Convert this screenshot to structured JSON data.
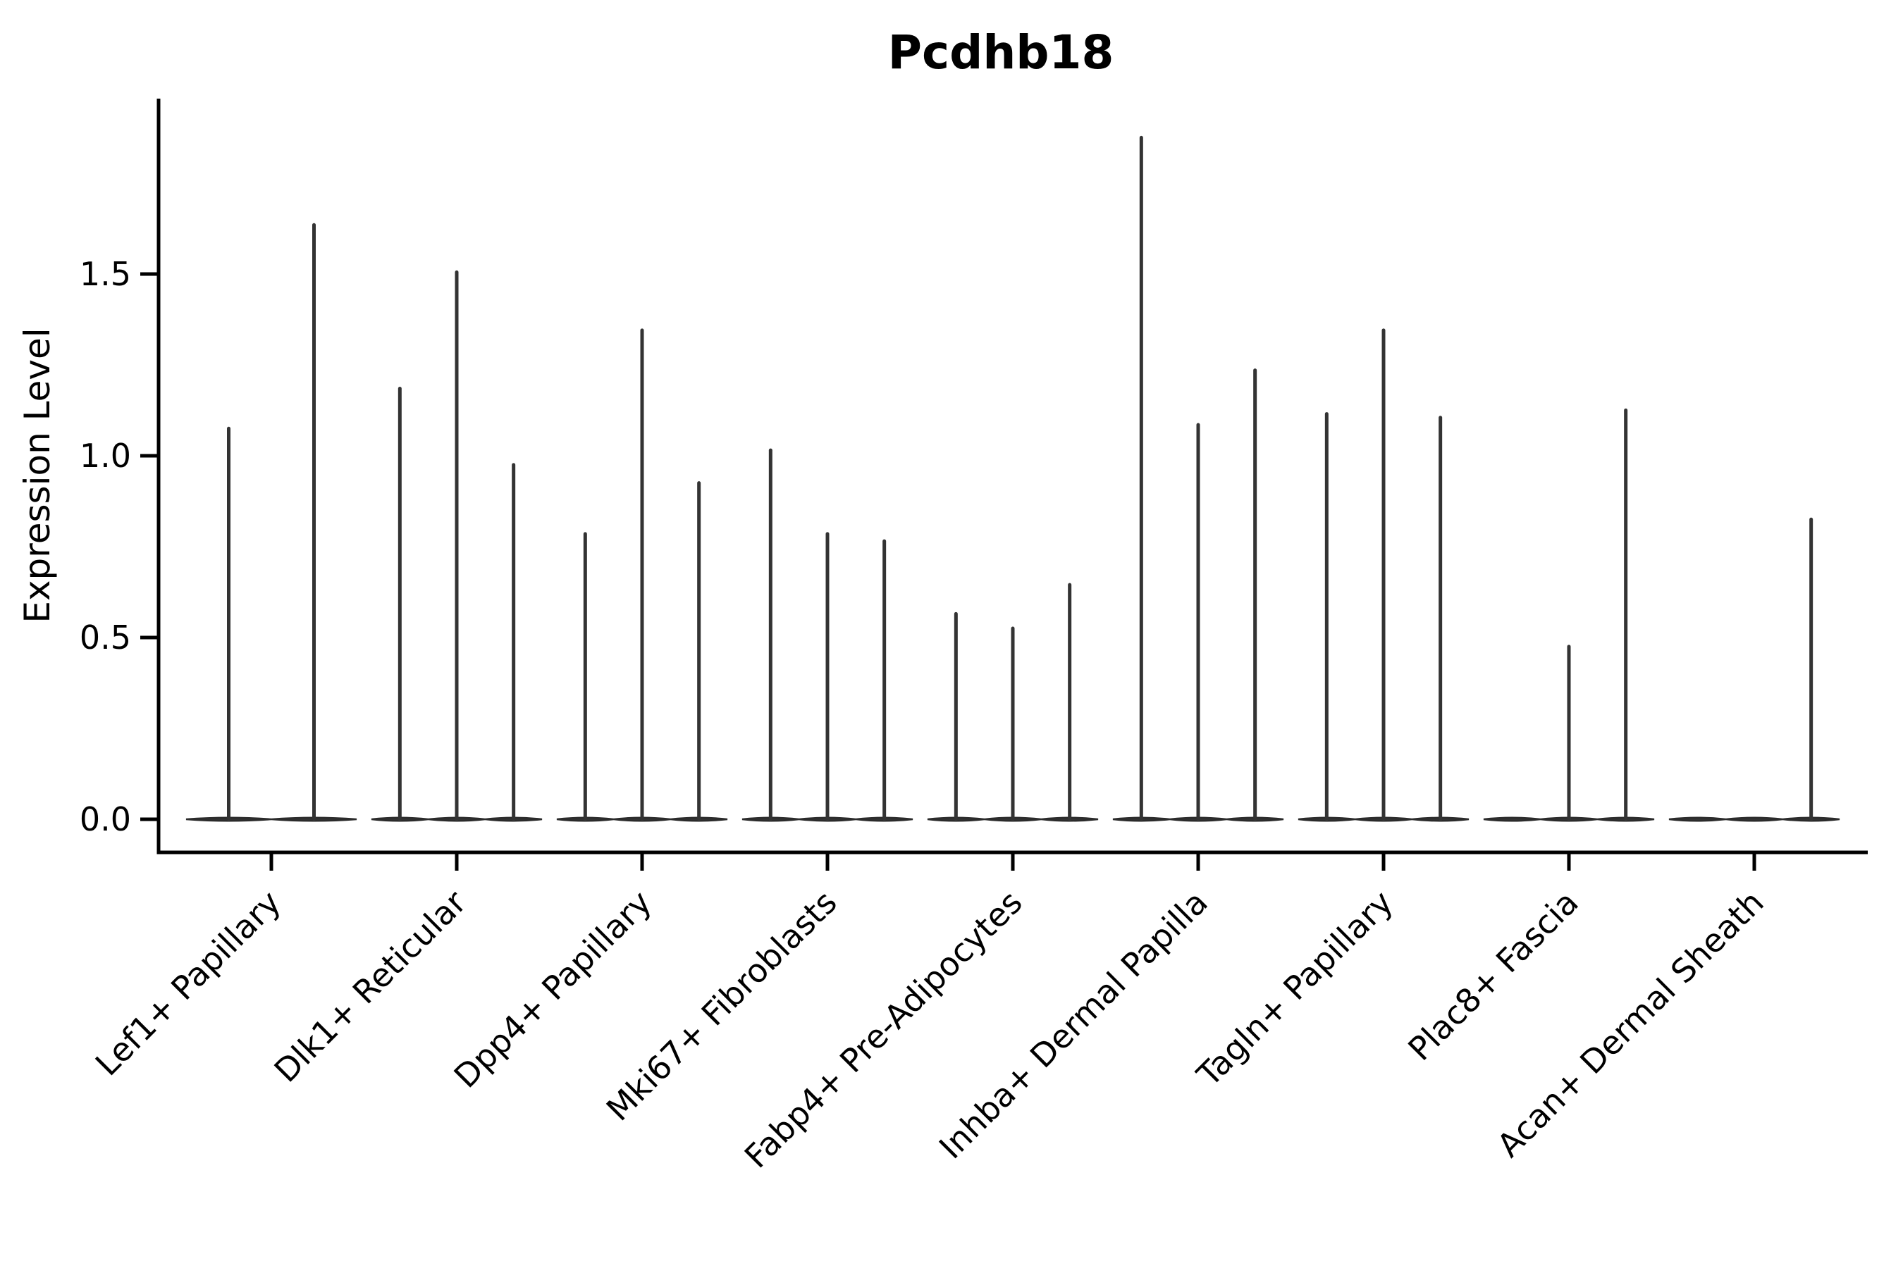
{
  "figure": {
    "background_color": "#ffffff",
    "violin_color": "#333333",
    "violin_edge_color": "#2b2b2b",
    "axis_color": "#000000",
    "text_color": "#000000"
  },
  "chart_data": {
    "type": "violin",
    "title": "Pcdhb18",
    "xlabel": "",
    "ylabel": "Expression Level",
    "orientation": "vertical",
    "grid": false,
    "legend": null,
    "ylim": [
      -0.09,
      1.98
    ],
    "yticks": [
      0.0,
      0.5,
      1.0,
      1.5
    ],
    "ytick_labels": [
      "0.0",
      "0.5",
      "1.0",
      "1.5"
    ],
    "xtick_rotation_deg": 45,
    "categories": [
      "Lef1+ Papillary",
      "Dlk1+ Reticular",
      "Dpp4+ Papillary",
      "Mki67+ Fibroblasts",
      "Fabp4+ Pre-Adipocytes",
      "Inhba+ Dermal Papilla",
      "Tagln+ Papillary",
      "Plac8+ Fascia",
      "Acan+ Dermal Sheath"
    ],
    "violin_shape_note": "Each violin is a spike: density concentrated at expression 0 (flat lens on baseline) with a thin vertical tail reaching the maximum expression value; violins with max 0 are flat on the baseline.",
    "violins": [
      {
        "category": "Lef1+ Papillary",
        "maxima": [
          1.08,
          1.64
        ]
      },
      {
        "category": "Dlk1+ Reticular",
        "maxima": [
          1.19,
          1.51,
          0.98
        ]
      },
      {
        "category": "Dpp4+ Papillary",
        "maxima": [
          0.79,
          1.35,
          0.93
        ]
      },
      {
        "category": "Mki67+ Fibroblasts",
        "maxima": [
          1.02,
          0.79,
          0.77
        ]
      },
      {
        "category": "Fabp4+ Pre-Adipocytes",
        "maxima": [
          0.57,
          0.53,
          0.65
        ]
      },
      {
        "category": "Inhba+ Dermal Papilla",
        "maxima": [
          1.88,
          1.09,
          1.24
        ]
      },
      {
        "category": "Tagln+ Papillary",
        "maxima": [
          1.12,
          1.35,
          1.11
        ]
      },
      {
        "category": "Plac8+ Fascia",
        "maxima": [
          0.0,
          0.48,
          1.13
        ]
      },
      {
        "category": "Acan+ Dermal Sheath",
        "maxima": [
          0.0,
          0.0,
          0.83
        ]
      }
    ]
  }
}
